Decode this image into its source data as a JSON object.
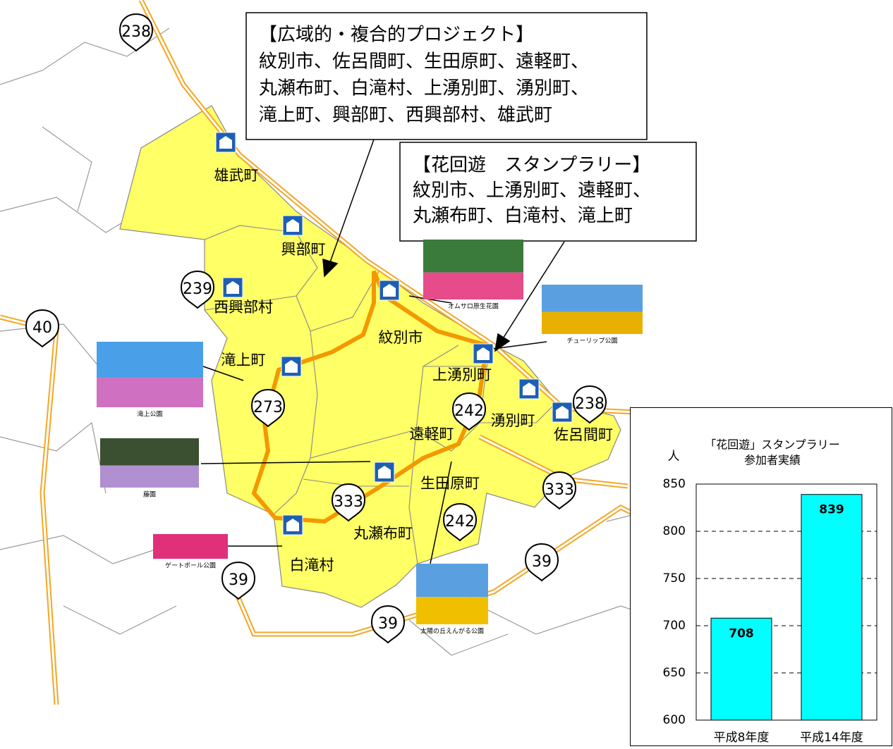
{
  "map": {
    "callouts": [
      {
        "title": "【広域的・複合的プロジェクト】",
        "lines": [
          "紋別市、佐呂間町、生田原町、遠軽町、",
          "丸瀬布町、白滝村、上湧別町、湧別町、",
          "滝上町、興部町、西興部村、雄武町"
        ]
      },
      {
        "title": "【花回遊　スタンプラリー】",
        "lines": [
          "紋別市、上湧別町、遠軽町、",
          "丸瀬布町、白滝村、滝上町"
        ]
      }
    ],
    "towns": [
      "雄武町",
      "興部町",
      "西興部村",
      "滝上町",
      "紋別市",
      "上湧別町",
      "湧別町",
      "佐呂間町",
      "遠軽町",
      "生田原町",
      "丸瀬布町",
      "白滝村"
    ],
    "routes": [
      "238",
      "238",
      "239",
      "40",
      "273",
      "242",
      "242",
      "333",
      "333",
      "39",
      "39",
      "39"
    ],
    "photos": [
      "オムサロ原生花園",
      "チューリップ公園",
      "滝上公園",
      "藤園",
      "ゲートボール公園",
      "太陽の丘えんがる公園"
    ]
  },
  "chart_data": {
    "type": "bar",
    "title_lines": [
      "「花回遊」スタンプラリー",
      "参加者実績"
    ],
    "y_label": "人",
    "categories": [
      "平成8年度",
      "平成14年度"
    ],
    "values": [
      708,
      839
    ],
    "color": "#00ffff",
    "ylim": [
      600,
      850
    ],
    "yticks": [
      600,
      650,
      700,
      750,
      800,
      850
    ],
    "grid": true
  }
}
